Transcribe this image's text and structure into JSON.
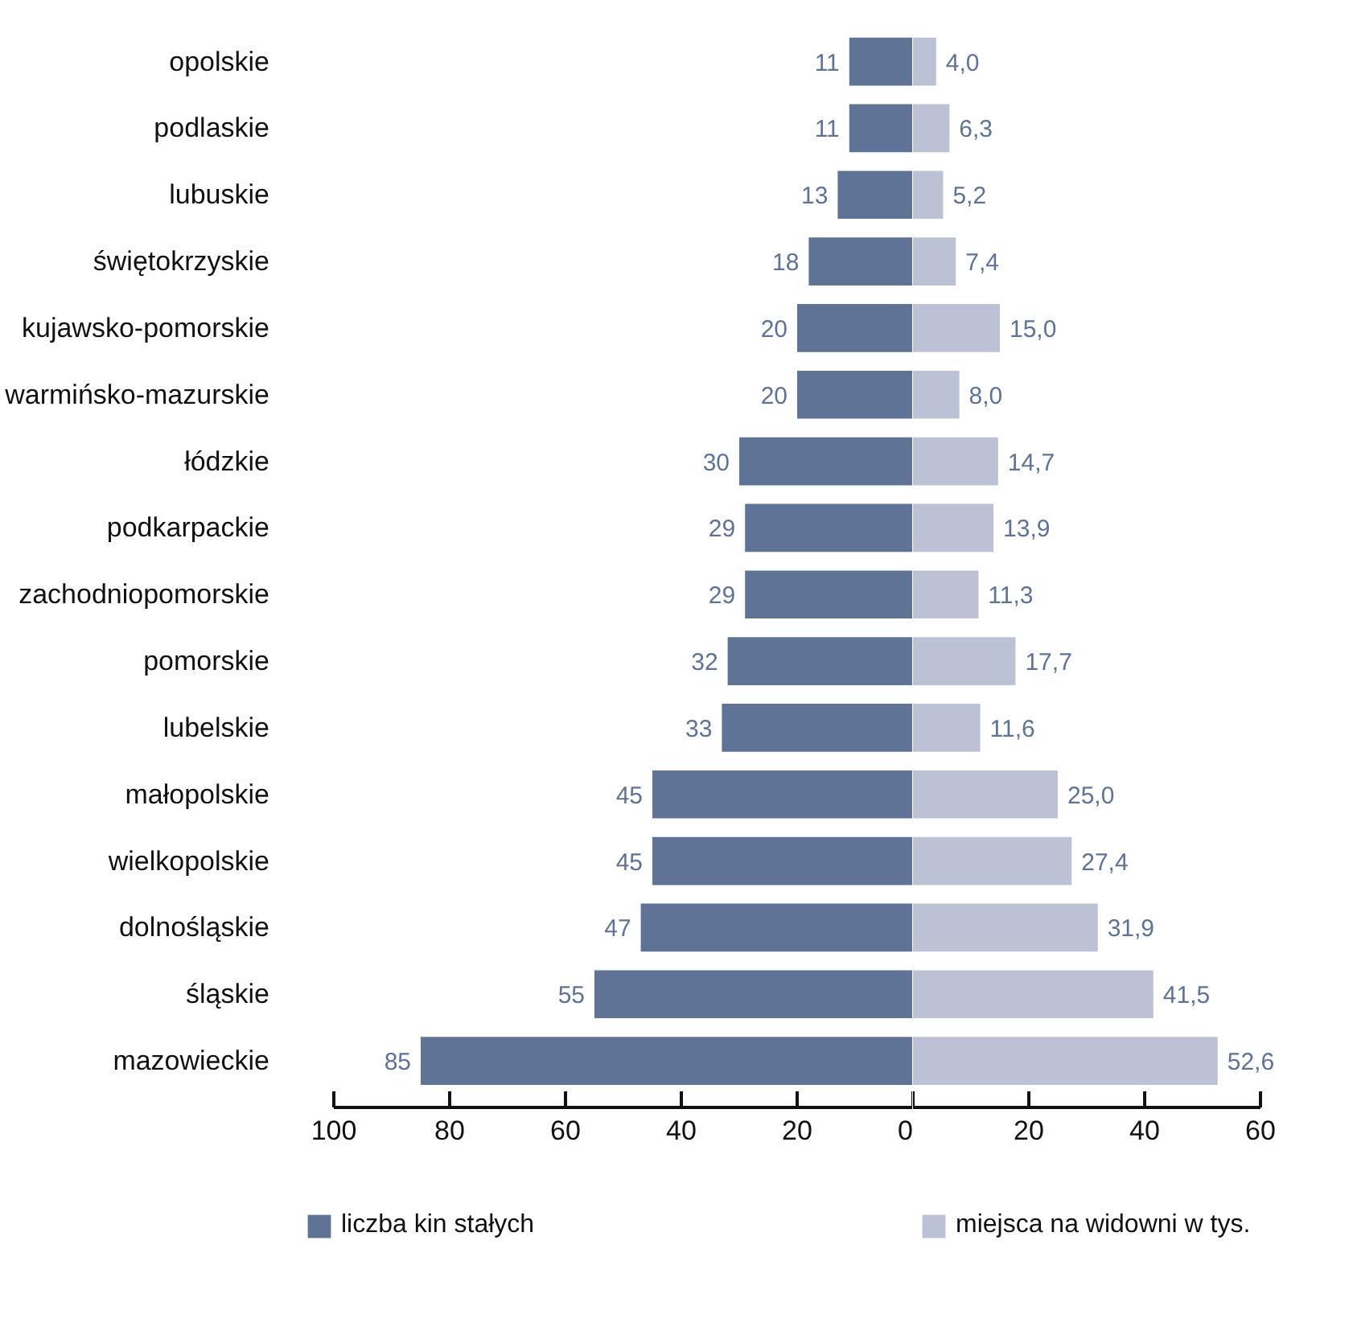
{
  "chart_data": [
    {
      "type": "bar",
      "orientation": "horizontal",
      "categories": [
        "opolskie",
        "podlaskie",
        "lubuskie",
        "świętokrzyskie",
        "kujawsko-pomorskie",
        "warmińsko-mazurskie",
        "łódzkie",
        "podkarpackie",
        "zachodniopomorskie",
        "pomorskie",
        "lubelskie",
        "małopolskie",
        "wielkopolskie",
        "dolnośląskie",
        "śląskie",
        "mazowieckie"
      ],
      "series": [
        {
          "name": "liczba kin stałych",
          "color": "#5f7396",
          "values": [
            11,
            11,
            13,
            18,
            20,
            20,
            30,
            29,
            29,
            32,
            33,
            45,
            45,
            47,
            55,
            85
          ]
        }
      ],
      "data_labels": true,
      "xlim": [
        100,
        0
      ],
      "xticks": [
        100,
        80,
        60,
        40,
        20,
        0
      ],
      "grid": false,
      "legend": "bottom"
    },
    {
      "type": "bar",
      "orientation": "horizontal",
      "series": [
        {
          "name": "miejsca na widowni w tys.",
          "color": "#bcc1d6",
          "values": [
            4.0,
            6.3,
            5.2,
            7.4,
            15.0,
            8.0,
            14.7,
            13.9,
            11.3,
            17.7,
            11.6,
            25.0,
            27.4,
            31.9,
            41.5,
            52.6
          ],
          "value_labels": [
            "4,0",
            "6,3",
            "5,2",
            "7,4",
            "15,0",
            "8,0",
            "14,7",
            "13,9",
            "11,3",
            "17,7",
            "11,6",
            "25,0",
            "27,4",
            "31,9",
            "41,5",
            "52,6"
          ]
        }
      ],
      "xlim": [
        0,
        60
      ],
      "xticks": [
        {
          "value": 0,
          "label": null
        },
        20,
        40,
        60
      ],
      "tick_labels": "x",
      "grid": false,
      "legend": "bottom"
    }
  ]
}
